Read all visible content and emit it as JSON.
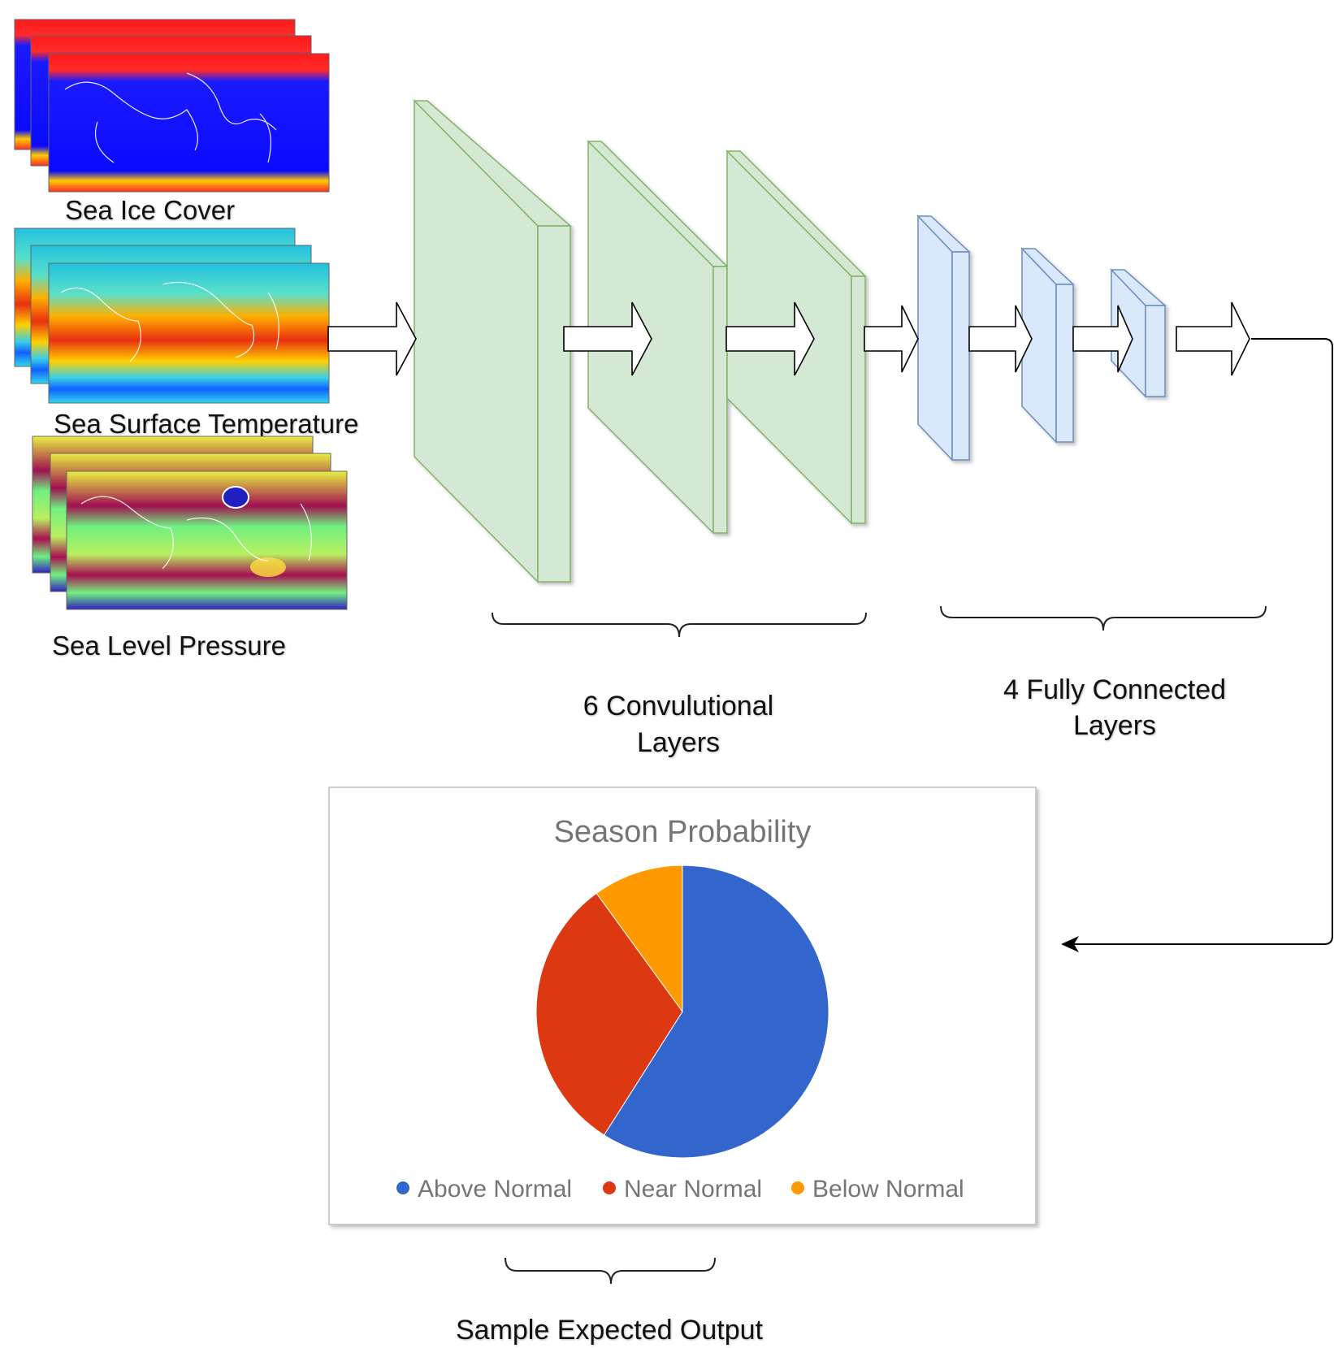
{
  "inputs": [
    {
      "label": "Sea Ice Cover",
      "palette": "ice"
    },
    {
      "label": "Sea Surface Temperature",
      "palette": "sst"
    },
    {
      "label": "Sea Level Pressure",
      "palette": "slp"
    }
  ],
  "sections": {
    "conv_label_line1": "6 Convulutional",
    "conv_label_line2": "Layers",
    "fc_label_line1": "4 Fully Connected",
    "fc_label_line2": "Layers",
    "output_label": "Sample Expected Output"
  },
  "colors": {
    "conv_fill": "#d5e8d4",
    "conv_stroke": "#82b366",
    "fc_fill": "#dae8fc",
    "fc_stroke": "#6c8ebf"
  },
  "chart_data": {
    "type": "pie",
    "title": "Season Probability",
    "categories": [
      "Above Normal",
      "Near Normal",
      "Below Normal"
    ],
    "values": [
      59,
      31,
      10
    ],
    "colors": [
      "#3366cc",
      "#dc3912",
      "#ff9900"
    ],
    "legend": "bottom"
  }
}
